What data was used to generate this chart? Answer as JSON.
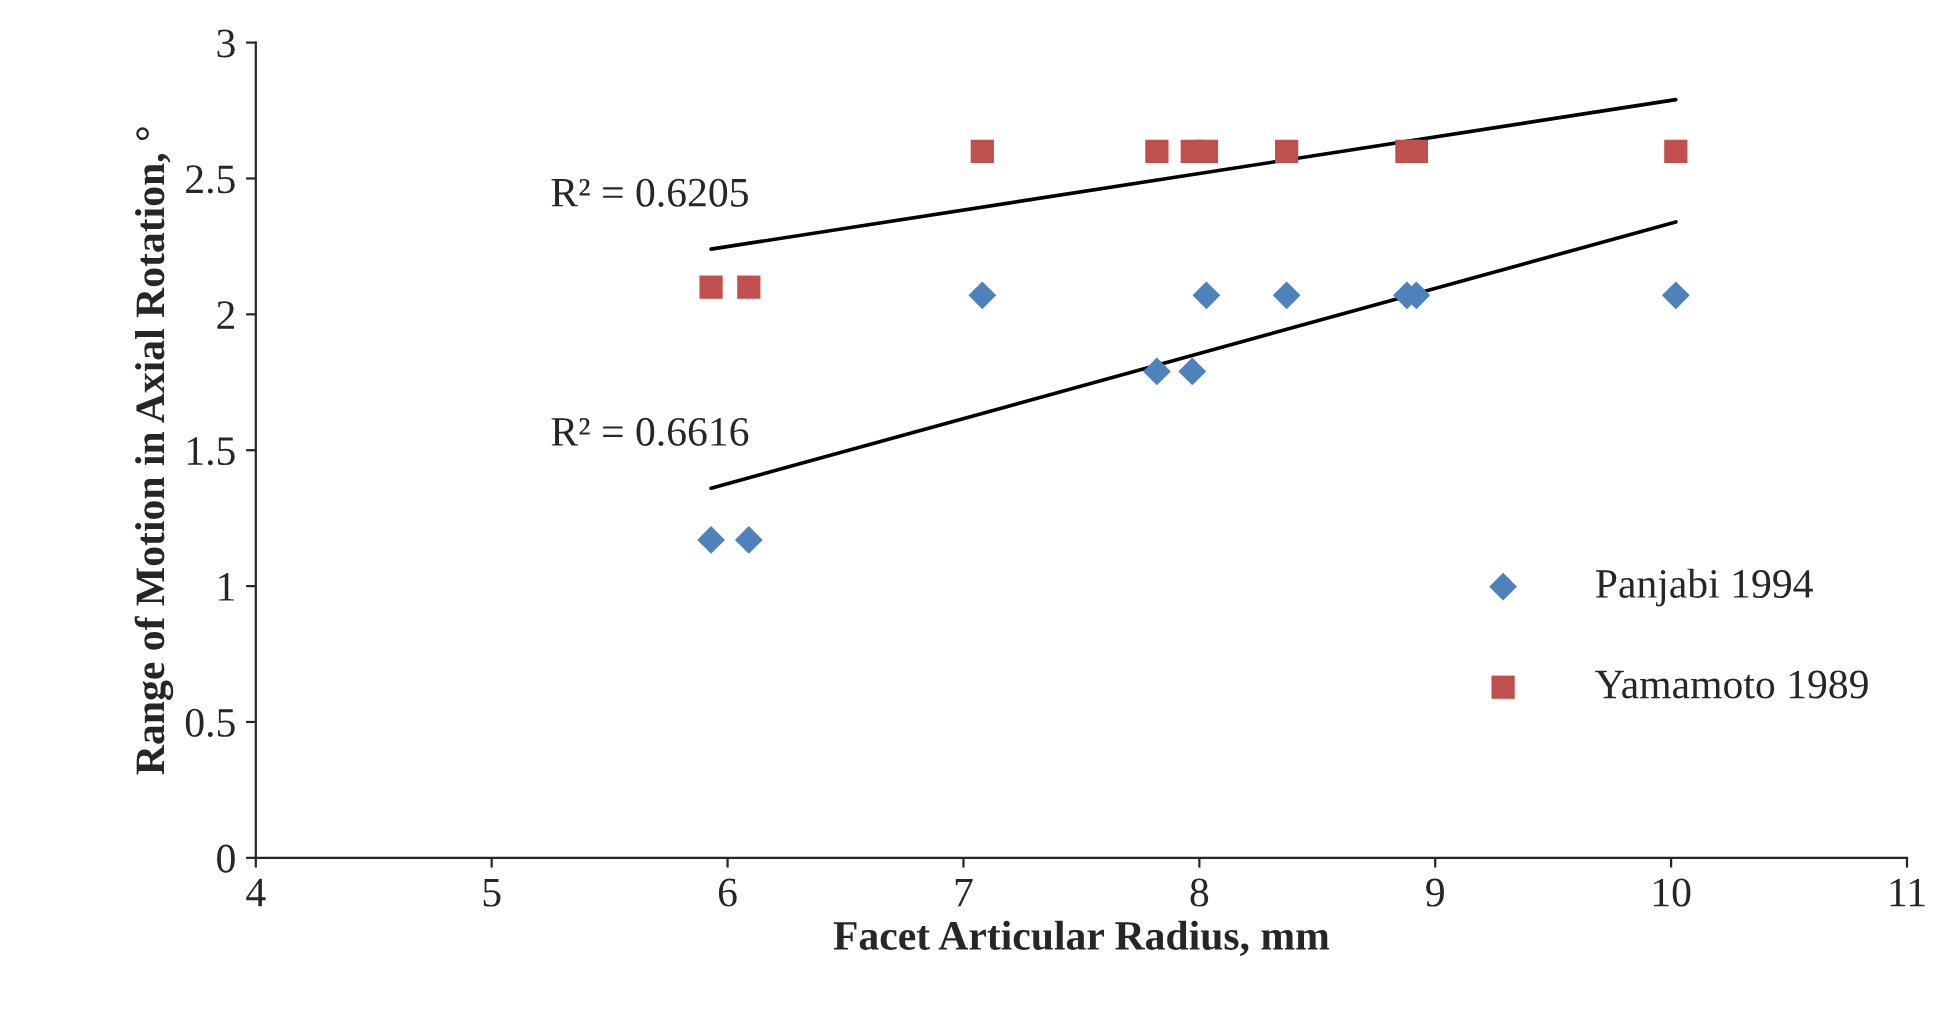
{
  "chart_data": {
    "type": "scatter",
    "xlabel": "Facet Articular Radius, mm",
    "ylabel": "Range of Motion in Axial Rotation, °",
    "xlim": [
      4,
      11
    ],
    "xticks": [
      4,
      5,
      6,
      7,
      8,
      9,
      10,
      11
    ],
    "ylim": [
      0,
      3
    ],
    "yticks": [
      0,
      0.5,
      1,
      1.5,
      2,
      2.5,
      3
    ],
    "grid": false,
    "legend": "right",
    "series": [
      {
        "name": "Panjabi 1994",
        "color": "#4f81bd",
        "marker": "diamond",
        "x": [
          5.93,
          6.09,
          7.08,
          7.82,
          7.97,
          8.03,
          8.37,
          8.88,
          8.92,
          10.02
        ],
        "values": [
          1.17,
          1.17,
          2.07,
          1.79,
          1.79,
          2.07,
          2.07,
          2.07,
          2.07,
          2.07
        ]
      },
      {
        "name": "Yamamoto 1989",
        "color": "#c0504d",
        "marker": "square",
        "x": [
          5.93,
          6.09,
          7.08,
          7.82,
          7.97,
          8.03,
          8.37,
          8.88,
          8.92,
          10.02
        ],
        "values": [
          2.1,
          2.1,
          2.6,
          2.6,
          2.6,
          2.6,
          2.6,
          2.6,
          2.6,
          2.6
        ]
      },
      {
        "type": "line",
        "color": "#000000",
        "marker": "none",
        "x": [
          5.93,
          10.02
        ],
        "values": [
          2.24,
          2.79
        ]
      },
      {
        "type": "line",
        "color": "#000000",
        "marker": "none",
        "x": [
          5.93,
          10.02
        ],
        "values": [
          1.36,
          2.34
        ]
      }
    ],
    "annotations": [
      "R² = 0.6205",
      "R² = 0.6616"
    ]
  }
}
